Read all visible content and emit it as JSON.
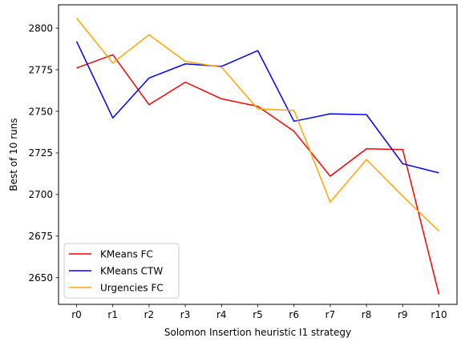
{
  "chart_data": {
    "type": "line",
    "xlabel": "Solomon Insertion heuristic I1 strategy",
    "ylabel": "Best of 10 runs",
    "categories": [
      "r0",
      "r1",
      "r2",
      "r3",
      "r4",
      "r5",
      "r6",
      "r7",
      "r8",
      "r9",
      "r10"
    ],
    "ylim": [
      2634,
      2814
    ],
    "yticks": [
      2650,
      2675,
      2700,
      2725,
      2750,
      2775,
      2800
    ],
    "grid": false,
    "legend_position": "lower-left",
    "series": [
      {
        "name": "KMeans FC",
        "color": "#ff0000",
        "values": [
          2776,
          2784,
          2754,
          2767.5,
          2757.5,
          2753,
          2738,
          2711,
          2727.5,
          2727,
          2640
        ]
      },
      {
        "name": "KMeans CTW",
        "color": "#0000ff",
        "values": [
          2792,
          2746,
          2770,
          2778.5,
          2777,
          2786.5,
          2744,
          2748.5,
          2748,
          2718.5,
          2713
        ]
      },
      {
        "name": "Urgencies FC",
        "color": "#ffa500",
        "values": [
          2806,
          2779,
          2796,
          2780,
          2776.5,
          2751.5,
          2750.5,
          2695.5,
          2721,
          2699,
          2678
        ]
      }
    ]
  }
}
